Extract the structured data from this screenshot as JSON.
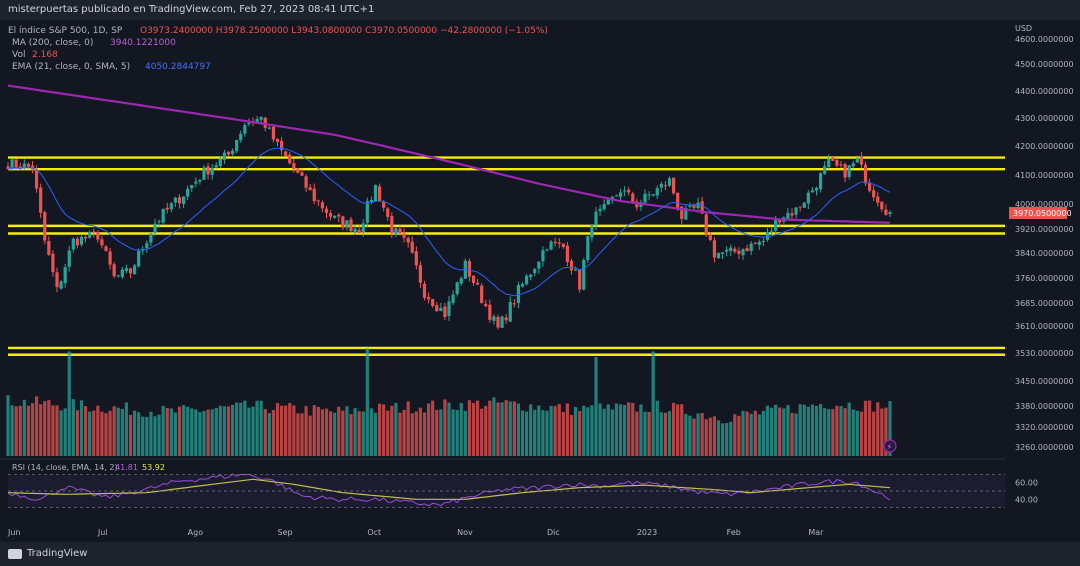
{
  "header": {
    "published": "misterpuertas publicado en TradingView.com, Feb 27, 2023 08:41 UTC+1"
  },
  "legend": {
    "symbol": "El índice S&P 500, 1D, SP",
    "ohlc": "O3973.2400000  H3978.2500000  L3943.0800000  C3970.0500000  −42.2800000 (−1.05%)",
    "ma_label": "MA (200, close, 0)",
    "ma_value": "3940.1221000",
    "vol_label": "Vol",
    "vol_value": "2.168",
    "ema_label": "EMA (21, close, 0, SMA, 5)",
    "ema_value": "4050.2844797",
    "rsi_label": "RSI (14, close, EMA, 14, 2)",
    "rsi_value": "41.81",
    "rsi_ma_value": "53.92"
  },
  "footer": {
    "brand": "TradingView"
  },
  "colors": {
    "bg": "#131722",
    "up": "#26a69a",
    "down": "#ef5350",
    "ma": "#9c27b0",
    "ema": "#2962ff",
    "level": "#f5f000",
    "rsi": "#9c4fd6",
    "rsi_ma": "#c8c84a"
  },
  "chart_data": {
    "type": "candlestick",
    "title": "El índice S&P 500, 1D, SP",
    "currency": "USD",
    "y_ticks": [
      "4600.0000000",
      "4500.0000000",
      "4400.0000000",
      "4300.0000000",
      "4200.0000000",
      "4100.0000000",
      "4000.0000000",
      "3920.0000000",
      "3840.0000000",
      "3760.0000000",
      "3685.0000000",
      "3610.0000000",
      "3530.0000000",
      "3450.0000000",
      "3380.0000000",
      "3320.0000000",
      "3260.0000000"
    ],
    "last_price": "3970.0500000",
    "x_ticks": [
      "Jun",
      "Jul",
      "Ago",
      "Sep",
      "Oct",
      "Nov",
      "Dic",
      "2023",
      "Feb",
      "Mar"
    ],
    "levels": [
      4160,
      4120,
      3930,
      3905,
      3545,
      3525
    ],
    "rsi_ticks": [
      "60.00",
      "40.00"
    ],
    "series": [
      {
        "name": "S&P 500",
        "kind": "ohlc"
      },
      {
        "name": "MA (200, close, 0)",
        "kind": "line"
      },
      {
        "name": "EMA (21, close, 0, SMA, 5)",
        "kind": "line"
      },
      {
        "name": "Vol",
        "kind": "histogram"
      },
      {
        "name": "RSI (14, close, EMA, 14, 2)",
        "kind": "line"
      }
    ],
    "anchors_close": [
      [
        0,
        4140
      ],
      [
        6,
        4125
      ],
      [
        9,
        3880
      ],
      [
        12,
        3720
      ],
      [
        16,
        3880
      ],
      [
        22,
        3900
      ],
      [
        26,
        3760
      ],
      [
        30,
        3780
      ],
      [
        36,
        3940
      ],
      [
        42,
        4020
      ],
      [
        48,
        4110
      ],
      [
        54,
        4170
      ],
      [
        58,
        4280
      ],
      [
        62,
        4300
      ],
      [
        66,
        4200
      ],
      [
        70,
        4120
      ],
      [
        75,
        4020
      ],
      [
        80,
        3950
      ],
      [
        86,
        3920
      ],
      [
        90,
        4060
      ],
      [
        94,
        3920
      ],
      [
        98,
        3860
      ],
      [
        102,
        3720
      ],
      [
        107,
        3650
      ],
      [
        112,
        3800
      ],
      [
        116,
        3700
      ],
      [
        120,
        3600
      ],
      [
        125,
        3720
      ],
      [
        129,
        3800
      ],
      [
        132,
        3870
      ],
      [
        136,
        3860
      ],
      [
        140,
        3740
      ],
      [
        143,
        3950
      ],
      [
        146,
        3980
      ],
      [
        150,
        4050
      ],
      [
        154,
        4000
      ],
      [
        158,
        4040
      ],
      [
        162,
        4080
      ],
      [
        165,
        3960
      ],
      [
        169,
        3990
      ],
      [
        173,
        3840
      ],
      [
        177,
        3840
      ],
      [
        181,
        3860
      ],
      [
        185,
        3880
      ],
      [
        189,
        3960
      ],
      [
        193,
        3980
      ],
      [
        197,
        4050
      ],
      [
        201,
        4140
      ],
      [
        205,
        4110
      ],
      [
        208,
        4150
      ],
      [
        211,
        4060
      ],
      [
        214,
        4000
      ],
      [
        216,
        3970
      ]
    ],
    "rsi_anchors": [
      [
        0,
        48
      ],
      [
        8,
        40
      ],
      [
        14,
        55
      ],
      [
        24,
        42
      ],
      [
        34,
        52
      ],
      [
        42,
        62
      ],
      [
        50,
        66
      ],
      [
        58,
        70
      ],
      [
        64,
        64
      ],
      [
        72,
        44
      ],
      [
        80,
        40
      ],
      [
        90,
        40
      ],
      [
        98,
        36
      ],
      [
        106,
        33
      ],
      [
        114,
        44
      ],
      [
        122,
        52
      ],
      [
        130,
        54
      ],
      [
        138,
        58
      ],
      [
        146,
        56
      ],
      [
        152,
        60
      ],
      [
        158,
        58
      ],
      [
        164,
        54
      ],
      [
        170,
        48
      ],
      [
        176,
        46
      ],
      [
        184,
        50
      ],
      [
        192,
        56
      ],
      [
        198,
        60
      ],
      [
        204,
        62
      ],
      [
        208,
        60
      ],
      [
        212,
        50
      ],
      [
        216,
        42
      ]
    ],
    "rsi_ma_anchors": [
      [
        0,
        48
      ],
      [
        14,
        46
      ],
      [
        34,
        48
      ],
      [
        50,
        58
      ],
      [
        60,
        64
      ],
      [
        70,
        58
      ],
      [
        82,
        48
      ],
      [
        100,
        40
      ],
      [
        112,
        40
      ],
      [
        126,
        48
      ],
      [
        140,
        54
      ],
      [
        156,
        57
      ],
      [
        172,
        52
      ],
      [
        182,
        48
      ],
      [
        196,
        54
      ],
      [
        206,
        58
      ],
      [
        216,
        54
      ]
    ],
    "vol_anchors": [
      [
        0,
        0.5
      ],
      [
        20,
        0.45
      ],
      [
        40,
        0.4
      ],
      [
        60,
        0.45
      ],
      [
        80,
        0.4
      ],
      [
        100,
        0.45
      ],
      [
        120,
        0.48
      ],
      [
        140,
        0.42
      ],
      [
        160,
        0.45
      ],
      [
        175,
        0.35
      ],
      [
        190,
        0.42
      ],
      [
        200,
        0.48
      ],
      [
        216,
        0.45
      ]
    ],
    "vol_spikes": [
      [
        15,
        0.95
      ],
      [
        88,
        0.98
      ],
      [
        158,
        0.95
      ],
      [
        144,
        0.9
      ]
    ],
    "n_bars": 217
  }
}
